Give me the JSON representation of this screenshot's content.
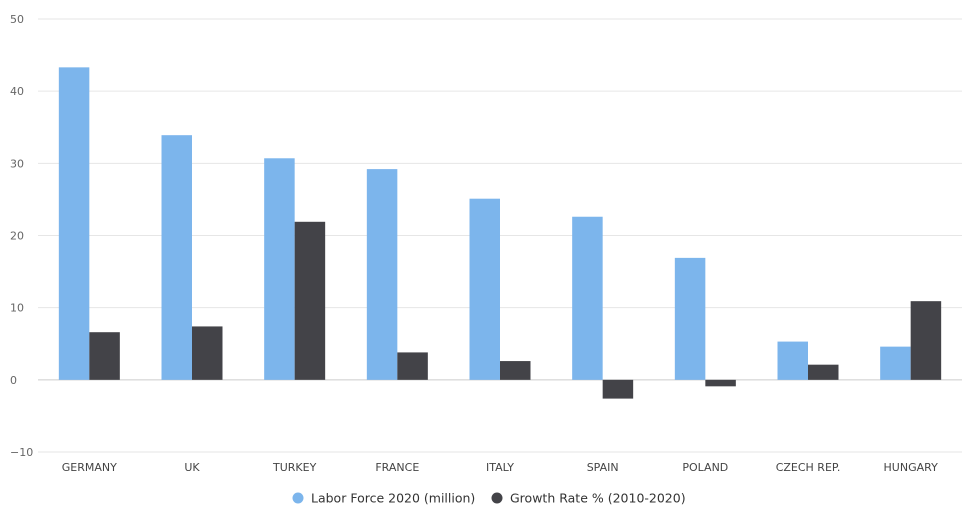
{
  "chart_data": {
    "type": "bar",
    "categories": [
      "GERMANY",
      "UK",
      "TURKEY",
      "FRANCE",
      "ITALY",
      "SPAIN",
      "POLAND",
      "CZECH REP.",
      "HUNGARY"
    ],
    "series": [
      {
        "name": "Labor Force 2020 (million)",
        "color": "#7cb5ec",
        "values": [
          43.3,
          33.9,
          30.7,
          29.2,
          25.1,
          22.6,
          16.9,
          5.3,
          4.6
        ]
      },
      {
        "name": "Growth Rate % (2010-2020)",
        "color": "#434348",
        "values": [
          6.6,
          7.4,
          21.9,
          3.8,
          2.6,
          -2.6,
          -0.9,
          2.1,
          10.9
        ]
      }
    ],
    "ylim": [
      -10,
      50
    ],
    "yticks": [
      50,
      40,
      30,
      20,
      10,
      0,
      -10
    ],
    "grid": true,
    "legend_position": "bottom-center",
    "title": "",
    "xlabel": "",
    "ylabel": ""
  }
}
